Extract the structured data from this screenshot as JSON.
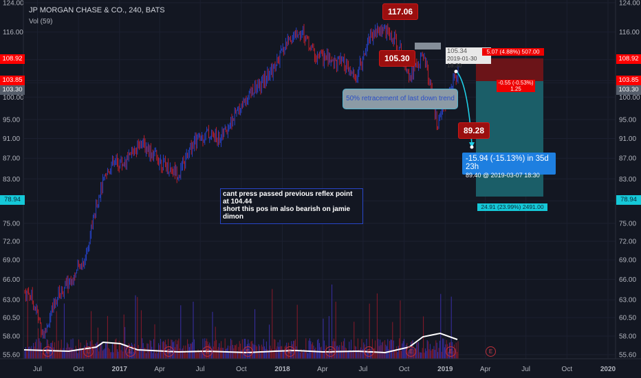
{
  "header": {
    "symbol_line": "JP MORGAN CHASE & CO., 240, BATS",
    "indicator_line": "Vol (59)"
  },
  "chart_data": {
    "type": "candlestick",
    "title": "JP MORGAN CHASE & CO., 240, BATS",
    "x_tick_labels": [
      "Jul",
      "Oct",
      "2017",
      "Apr",
      "Jul",
      "Oct",
      "2018",
      "Apr",
      "Jul",
      "Oct",
      "2019",
      "Apr",
      "Jul",
      "Oct",
      "2020"
    ],
    "y_tick_labels": [
      "124.00",
      "116.00",
      "108.92",
      "103.85",
      "103.30",
      "100.00",
      "95.00",
      "91.00",
      "87.00",
      "83.00",
      "78.94",
      "75.00",
      "72.00",
      "69.00",
      "66.00",
      "63.00",
      "60.50",
      "58.00",
      "55.60"
    ],
    "y_scale": "log",
    "ylim": [
      55.6,
      124.0
    ],
    "close_path": [
      {
        "date": "2016-06",
        "close": 64.0
      },
      {
        "date": "2016-07",
        "close": 58.0
      },
      {
        "date": "2016-08",
        "close": 63.5
      },
      {
        "date": "2016-09",
        "close": 66.0
      },
      {
        "date": "2016-10",
        "close": 69.0
      },
      {
        "date": "2016-11",
        "close": 80.0
      },
      {
        "date": "2016-12",
        "close": 86.0
      },
      {
        "date": "2017-01",
        "close": 86.0
      },
      {
        "date": "2017-02",
        "close": 90.5
      },
      {
        "date": "2017-03",
        "close": 88.0
      },
      {
        "date": "2017-04",
        "close": 85.5
      },
      {
        "date": "2017-05",
        "close": 84.0
      },
      {
        "date": "2017-06",
        "close": 90.0
      },
      {
        "date": "2017-07",
        "close": 92.0
      },
      {
        "date": "2017-08",
        "close": 91.0
      },
      {
        "date": "2017-09",
        "close": 95.5
      },
      {
        "date": "2017-10",
        "close": 100.5
      },
      {
        "date": "2017-11",
        "close": 103.0
      },
      {
        "date": "2017-12",
        "close": 107.0
      },
      {
        "date": "2018-01",
        "close": 114.0
      },
      {
        "date": "2018-02",
        "close": 116.0
      },
      {
        "date": "2018-03",
        "close": 110.0
      },
      {
        "date": "2018-04",
        "close": 109.0
      },
      {
        "date": "2018-05",
        "close": 108.0
      },
      {
        "date": "2018-06",
        "close": 104.0
      },
      {
        "date": "2018-07",
        "close": 115.0
      },
      {
        "date": "2018-08",
        "close": 117.06
      },
      {
        "date": "2018-09",
        "close": 113.0
      },
      {
        "date": "2018-10",
        "close": 105.3
      },
      {
        "date": "2018-11",
        "close": 110.0
      },
      {
        "date": "2018-12",
        "close": 93.0
      },
      {
        "date": "2019-01",
        "close": 103.0
      },
      {
        "date": "2019-01-30",
        "close": 105.34
      }
    ],
    "volume_ma": "Vol (59)",
    "horizontal_price_tags": [
      {
        "price": "108.92",
        "color": "#ff0000"
      },
      {
        "price": "103.85",
        "color": "#ff0000"
      },
      {
        "price": "103.30",
        "color": "#555d6a"
      },
      {
        "price": "78.94",
        "color": "#15c8d8"
      }
    ],
    "short_position": {
      "entry": 103.85,
      "stop": 108.92,
      "target": 78.94
    },
    "projected_move": {
      "from": 105.34,
      "to": 89.4,
      "change": "-15.94 (-15.13%) in 35d 23h",
      "target_line": "89.40 @ 2019-03-07 18:30"
    }
  },
  "price_tags_right": {
    "p1": "108.92",
    "p2": "103.85",
    "p3": "103.30",
    "p4": "78.94"
  },
  "callouts": {
    "high": "117.06",
    "mid": "105.30",
    "low": "89.28"
  },
  "retracement_label": "50% retracement of last down trend",
  "note_text": "cant press passed previous reflex point\nat 104.44\nshort this pos im also bearish on jamie\ndimon",
  "current_price_box": {
    "price": "105.34",
    "date": "2019-01-30 18:30"
  },
  "stop_box_text": "5.07 (4.88%) 507.00",
  "entry_box_text": "-0.55 (-0.53%)\n1.25",
  "profit_box_text": "24.91 (23.99%) 2491.00",
  "target_box": {
    "line1": "-15.94 (-15.13%) in 35d 23h",
    "line2": "89.40  @ 2019-03-07  18:30"
  },
  "earnings_badge": "E",
  "colors": {
    "background": "#131722",
    "up_candle": "#2846d8",
    "down_candle": "#d0202a",
    "volume_ma_line": "#ffffff",
    "profit_zone": "#1b5e68",
    "loss_zone": "#6b1418",
    "target_label": "#1e7fe0",
    "callout": "#9b0f0f"
  }
}
